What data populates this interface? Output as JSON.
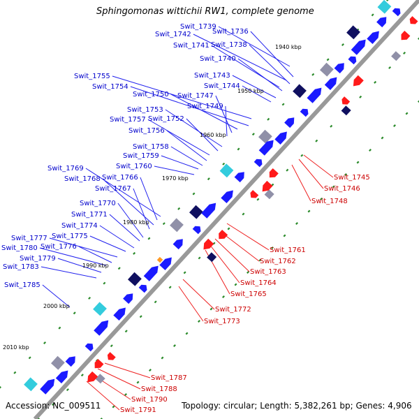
{
  "title": "Sphingomonas wittichii RW1, complete genome",
  "footer": {
    "accession": "Accession: NC_009511",
    "topology": "Topology: circular; Length: 5,382,261 bp; Genes: 4,906"
  },
  "colors": {
    "forward_gene": "#1a1aff",
    "reverse_gene": "#ff1a1a",
    "forward_label": "#0000cc",
    "reverse_label": "#cc0000",
    "backbone": "#999999",
    "gc_dot": "#2a8a2a",
    "feature_navy": "#101060",
    "feature_cyan": "#33ccdd",
    "feature_gray": "#9090a8",
    "feature_orange": "#ff9922"
  },
  "positions_kbp": [
    "1940 kbp",
    "1950 kbp",
    "1960 kbp",
    "1970 kbp",
    "1980 kbp",
    "1990 kbp",
    "2000 kbp",
    "2010 kbp"
  ],
  "forward_labels": [
    "Swit_1739",
    "Swit_1736",
    "Swit_1742",
    "Swit_1738",
    "Swit_1741",
    "Swit_1740",
    "Swit_1743",
    "Swit_1744",
    "Swit_1755",
    "Swit_1754",
    "Swit_1750",
    "Swit_1747",
    "Swit_1749",
    "Swit_1753",
    "Swit_1752",
    "Swit_1757",
    "Swit_1756",
    "Swit_1758",
    "Swit_1759",
    "Swit_1760",
    "Swit_1769",
    "Swit_1766",
    "Swit_1768",
    "Swit_1767",
    "Swit_1770",
    "Swit_1771",
    "Swit_1774",
    "Swit_1775",
    "Swit_1777",
    "Swit_1776",
    "Swit_1780",
    "Swit_1779",
    "Swit_1783",
    "Swit_1785"
  ],
  "reverse_labels": [
    "Swit_1745",
    "Swit_1746",
    "Swit_1748",
    "Swit_1761",
    "Swit_1762",
    "Swit_1763",
    "Swit_1764",
    "Swit_1765",
    "Swit_1772",
    "Swit_1773",
    "Swit_1787",
    "Swit_1788",
    "Swit_1790",
    "Swit_1791"
  ]
}
